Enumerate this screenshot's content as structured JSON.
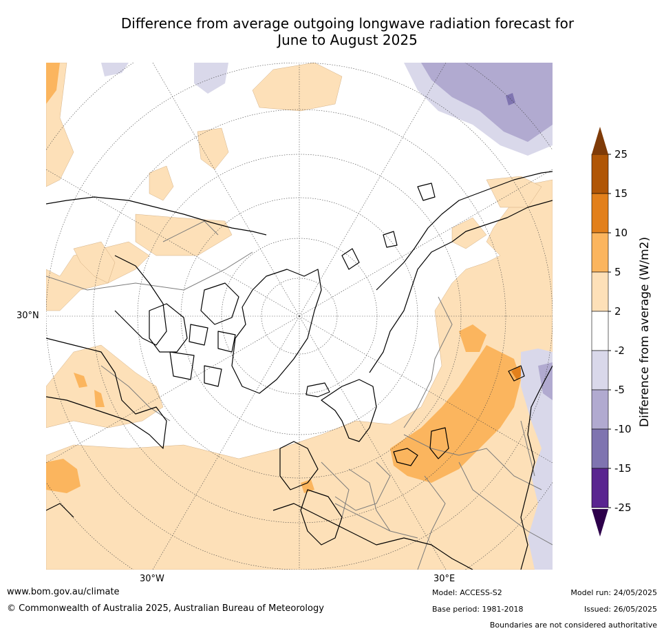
{
  "title": {
    "line1": "Difference from average outgoing longwave radiation forecast for",
    "line2": "June to August 2025"
  },
  "map": {
    "projection": "north polar stereographic",
    "labels": {
      "lat_30n": "30°N",
      "lon_30w": "30°W",
      "lon_30e": "30°E"
    },
    "field_colors": {
      "pos_2_5": "#fde0b8",
      "pos_5_10": "#fbb55e",
      "pos_10_15": "#e2801b",
      "neg_2_5": "#d9d8ea",
      "neg_5_10": "#b1aad0",
      "neg_10_15": "#7f74b0"
    }
  },
  "legend": {
    "label": "Difference from average (W/m2)",
    "ticks": [
      "25",
      "15",
      "10",
      "5",
      "2",
      "-2",
      "-5",
      "-10",
      "-15",
      "-25"
    ],
    "bin_colors": [
      "#b05606",
      "#e2801b",
      "#fbb55e",
      "#fde0b8",
      "#ffffff",
      "#d9d8ea",
      "#b1aad0",
      "#7f74b0",
      "#5a2590"
    ],
    "over_color": "#7f3b08",
    "under_color": "#2d004b"
  },
  "footer": {
    "website": "www.bom.gov.au/climate",
    "copyright": "© Commonwealth of Australia 2025, Australian Bureau of Meteorology",
    "model": "Model: ACCESS-S2",
    "base_period": "Base period: 1981-2018",
    "model_run": "Model run: 24/05/2025",
    "issued": "Issued: 26/05/2025",
    "disclaimer": "Boundaries are not considered authoritative"
  }
}
